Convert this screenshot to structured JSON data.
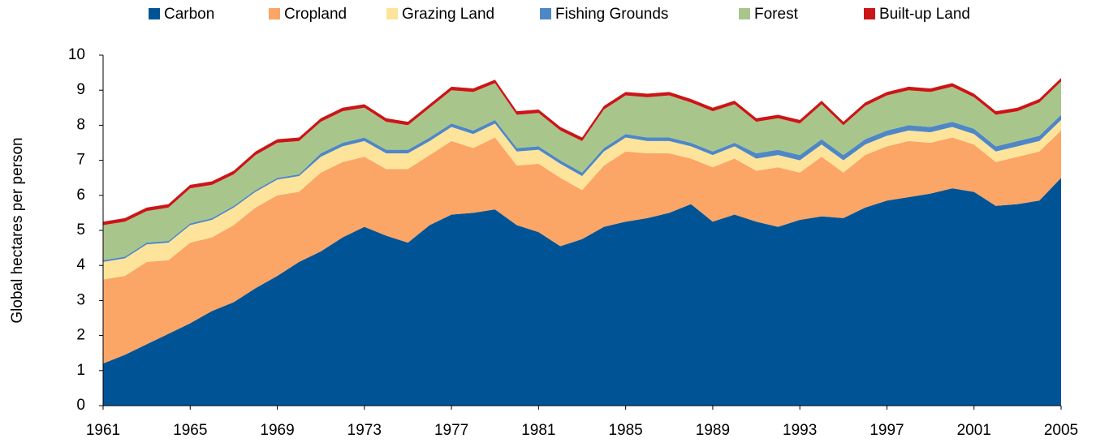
{
  "chart_data": {
    "type": "stacked_area",
    "y_label": "Global hectares per person",
    "x": [
      1961,
      1962,
      1963,
      1964,
      1965,
      1966,
      1967,
      1968,
      1969,
      1970,
      1971,
      1972,
      1973,
      1974,
      1975,
      1976,
      1977,
      1978,
      1979,
      1980,
      1981,
      1982,
      1983,
      1984,
      1985,
      1986,
      1987,
      1988,
      1989,
      1990,
      1991,
      1992,
      1993,
      1994,
      1995,
      1996,
      1997,
      1998,
      1999,
      2000,
      2001,
      2002,
      2003,
      2004,
      2005
    ],
    "xlim": [
      1961,
      2005
    ],
    "xticks": [
      1961,
      1965,
      1969,
      1973,
      1977,
      1981,
      1985,
      1989,
      1993,
      1997,
      2001,
      2005
    ],
    "ylim": [
      0,
      10
    ],
    "yticks": [
      0,
      1,
      2,
      3,
      4,
      5,
      6,
      7,
      8,
      9,
      10
    ],
    "legend": "top",
    "series": [
      {
        "name": "Carbon",
        "color": "#005496",
        "values": [
          1.2,
          1.45,
          1.75,
          2.05,
          2.35,
          2.7,
          2.95,
          3.35,
          3.7,
          4.1,
          4.4,
          4.8,
          5.1,
          4.85,
          4.65,
          5.15,
          5.45,
          5.5,
          5.6,
          5.15,
          4.95,
          4.55,
          4.75,
          5.1,
          5.25,
          5.35,
          5.5,
          5.75,
          5.25,
          5.45,
          5.25,
          5.1,
          5.3,
          5.4,
          5.35,
          5.65,
          5.85,
          5.95,
          6.05,
          6.2,
          6.1,
          5.7,
          5.75,
          5.85,
          6.5
        ]
      },
      {
        "name": "Cropland",
        "color": "#fba566",
        "values": [
          2.4,
          2.25,
          2.35,
          2.1,
          2.3,
          2.1,
          2.2,
          2.3,
          2.3,
          2.0,
          2.25,
          2.15,
          2.0,
          1.9,
          2.1,
          2.0,
          2.1,
          1.85,
          2.05,
          1.7,
          1.95,
          1.95,
          1.4,
          1.75,
          2.0,
          1.85,
          1.7,
          1.3,
          1.55,
          1.6,
          1.45,
          1.7,
          1.35,
          1.7,
          1.3,
          1.5,
          1.55,
          1.6,
          1.45,
          1.45,
          1.35,
          1.25,
          1.35,
          1.4,
          1.35
        ]
      },
      {
        "name": "Grazing Land",
        "color": "#fde49a",
        "values": [
          0.5,
          0.5,
          0.5,
          0.5,
          0.5,
          0.5,
          0.5,
          0.45,
          0.45,
          0.45,
          0.45,
          0.45,
          0.45,
          0.45,
          0.45,
          0.4,
          0.4,
          0.4,
          0.4,
          0.4,
          0.4,
          0.4,
          0.4,
          0.4,
          0.4,
          0.35,
          0.35,
          0.35,
          0.35,
          0.35,
          0.35,
          0.35,
          0.35,
          0.35,
          0.35,
          0.3,
          0.3,
          0.3,
          0.3,
          0.3,
          0.3,
          0.3,
          0.3,
          0.3,
          0.3
        ]
      },
      {
        "name": "Fishing Grounds",
        "color": "#4f87c6",
        "values": [
          0.05,
          0.05,
          0.05,
          0.05,
          0.05,
          0.05,
          0.05,
          0.05,
          0.05,
          0.05,
          0.1,
          0.1,
          0.1,
          0.1,
          0.1,
          0.1,
          0.1,
          0.1,
          0.1,
          0.1,
          0.1,
          0.1,
          0.1,
          0.1,
          0.1,
          0.1,
          0.1,
          0.1,
          0.1,
          0.1,
          0.15,
          0.15,
          0.15,
          0.15,
          0.15,
          0.15,
          0.15,
          0.15,
          0.15,
          0.15,
          0.15,
          0.15,
          0.15,
          0.15,
          0.15
        ]
      },
      {
        "name": "Forest",
        "color": "#a8c68c",
        "values": [
          1.0,
          1.0,
          0.9,
          0.95,
          1.0,
          0.95,
          0.9,
          1.0,
          1.0,
          0.95,
          0.9,
          0.9,
          0.85,
          0.8,
          0.7,
          0.85,
          0.95,
          1.1,
          1.05,
          0.95,
          0.95,
          0.85,
          0.9,
          1.1,
          1.1,
          1.15,
          1.2,
          1.15,
          1.15,
          1.1,
          0.9,
          0.9,
          0.9,
          1.0,
          0.85,
          0.95,
          1.0,
          1.0,
          1.0,
          1.0,
          0.9,
          0.9,
          0.85,
          0.95,
          0.95
        ]
      },
      {
        "name": "Built-up Land",
        "color": "#cc1517",
        "values": [
          0.1,
          0.1,
          0.1,
          0.1,
          0.1,
          0.1,
          0.1,
          0.1,
          0.1,
          0.1,
          0.1,
          0.1,
          0.1,
          0.1,
          0.1,
          0.1,
          0.1,
          0.1,
          0.1,
          0.1,
          0.1,
          0.1,
          0.1,
          0.1,
          0.1,
          0.1,
          0.1,
          0.1,
          0.1,
          0.1,
          0.1,
          0.1,
          0.1,
          0.1,
          0.1,
          0.1,
          0.1,
          0.1,
          0.1,
          0.1,
          0.1,
          0.1,
          0.1,
          0.1,
          0.1
        ]
      }
    ]
  }
}
